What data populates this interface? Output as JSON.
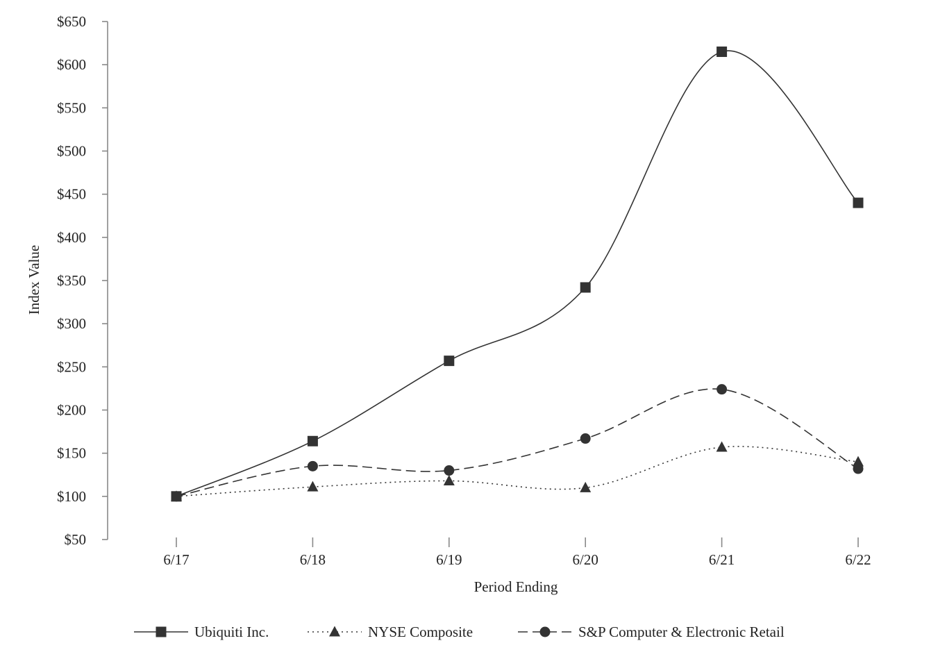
{
  "chart_data": {
    "type": "line",
    "title": "",
    "xlabel": "Period Ending",
    "ylabel": "Index Value",
    "categories": [
      "6/17",
      "6/18",
      "6/19",
      "6/20",
      "6/21",
      "6/22"
    ],
    "ylim": [
      50,
      650
    ],
    "yticks": [
      50,
      100,
      150,
      200,
      250,
      300,
      350,
      400,
      450,
      500,
      550,
      600,
      650
    ],
    "ytick_labels": [
      "$50",
      "$100",
      "$150",
      "$200",
      "$250",
      "$300",
      "$350",
      "$400",
      "$450",
      "$500",
      "$550",
      "$600",
      "$650"
    ],
    "grid": false,
    "legend_position": "bottom",
    "series": [
      {
        "name": "Ubiquiti Inc.",
        "marker": "square",
        "line_style": "solid",
        "color": "#333333",
        "values": [
          100,
          164,
          257,
          342,
          615,
          440
        ]
      },
      {
        "name": "NYSE Composite",
        "marker": "triangle",
        "line_style": "dotted",
        "color": "#333333",
        "values": [
          100,
          111,
          118,
          110,
          157,
          140
        ]
      },
      {
        "name": "S&P Computer & Electronic Retail",
        "marker": "circle",
        "line_style": "dashed",
        "color": "#333333",
        "values": [
          100,
          135,
          130,
          167,
          224,
          132
        ]
      }
    ]
  }
}
